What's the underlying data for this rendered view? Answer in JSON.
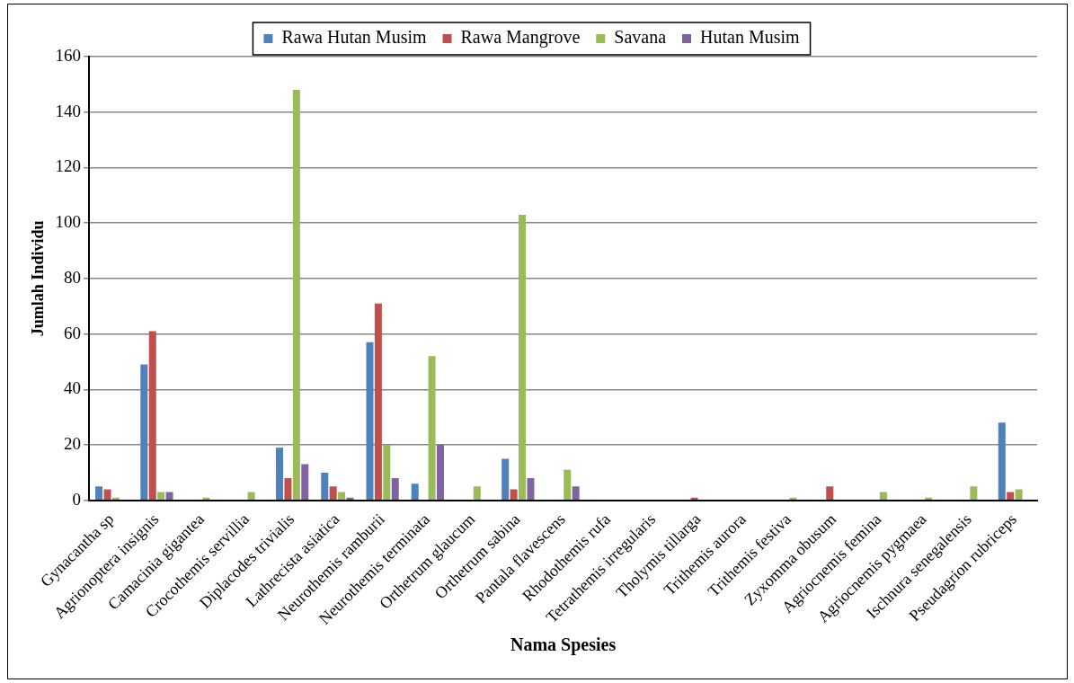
{
  "chart_data": {
    "type": "bar",
    "xlabel": "Nama Spesies",
    "ylabel": "Jumlah Individu",
    "categories": [
      "Gynacantha sp",
      "Agrionoptera insignis",
      "Camacinia gigantea",
      "Crocothemis servillia",
      "Diplacodes trivialis",
      "Lathrecista asiatica",
      "Neurothemis ramburii",
      "Neurothemis terminata",
      "Orthetrum glaucum",
      "Orthetrum sabina",
      "Pantala flavescens",
      "Rhodothemis rufa",
      "Tetrathemis irregularis",
      "Tholymis tillarga",
      "Trithemis aurora",
      "Trithemis festiva",
      "Zyxomma obusum",
      "Agriocnemis femina",
      "Agriocnemis pygmaea",
      "Ischnura senegalensis",
      "Pseudagrion rubriceps"
    ],
    "series": [
      {
        "name": "Rawa Hutan Musim",
        "color": "#4f81bd",
        "values": [
          5,
          49,
          0,
          0,
          19,
          10,
          57,
          6,
          0,
          15,
          0,
          0,
          0,
          0,
          0,
          0,
          0,
          0,
          0,
          0,
          28
        ]
      },
      {
        "name": "Rawa Mangrove",
        "color": "#c0504d",
        "values": [
          4,
          61,
          0,
          0,
          8,
          5,
          71,
          0,
          0,
          4,
          0,
          0,
          0,
          1,
          0,
          0,
          5,
          0,
          0,
          0,
          3
        ]
      },
      {
        "name": "Savana",
        "color": "#9bbb59",
        "values": [
          1,
          3,
          1,
          3,
          148,
          3,
          20,
          52,
          5,
          103,
          11,
          0,
          0,
          0,
          0,
          1,
          0,
          3,
          1,
          5,
          4
        ]
      },
      {
        "name": "Hutan Musim",
        "color": "#8064a2",
        "values": [
          0,
          3,
          0,
          0,
          13,
          1,
          8,
          20,
          0,
          8,
          5,
          0,
          0,
          0,
          0,
          0,
          0,
          0,
          0,
          0,
          0
        ]
      }
    ],
    "ylim": [
      0,
      160
    ],
    "yticks": [
      0,
      20,
      40,
      60,
      80,
      100,
      120,
      140,
      160
    ],
    "grid": "y",
    "legend": "top"
  }
}
